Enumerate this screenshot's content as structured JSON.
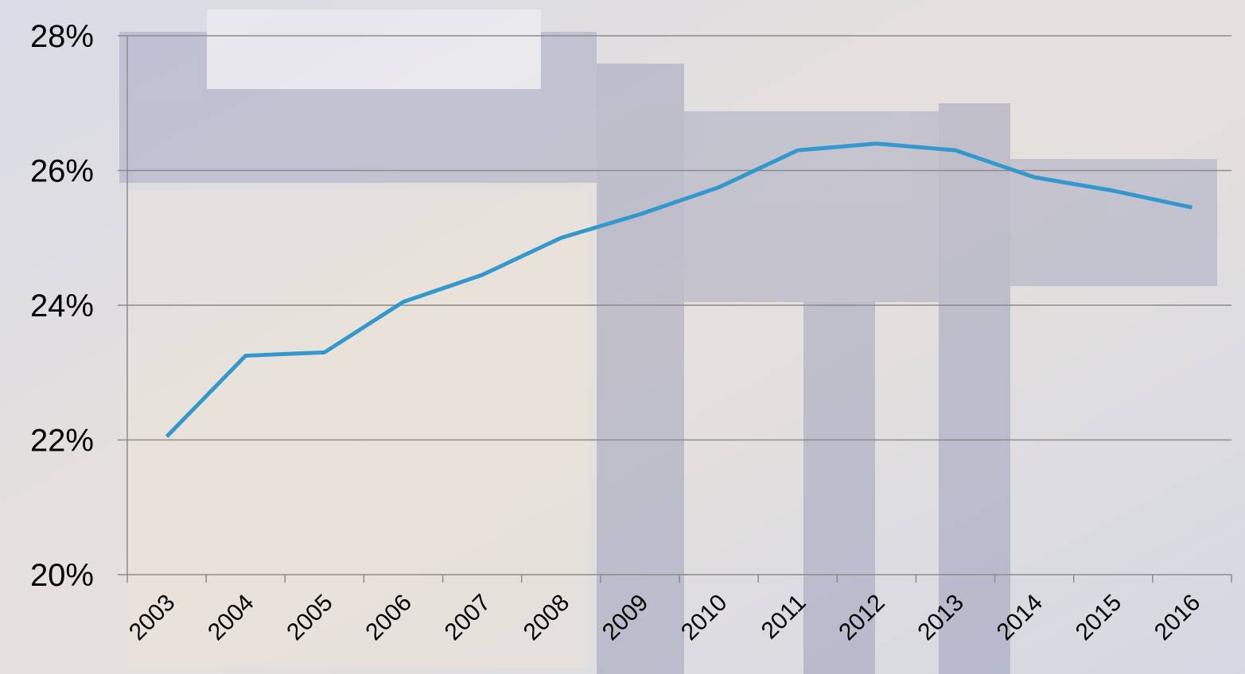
{
  "chart_data": {
    "type": "line",
    "categories": [
      "2003",
      "2004",
      "2005",
      "2006",
      "2007",
      "2008",
      "2009",
      "2010",
      "2011",
      "2012",
      "2013",
      "2014",
      "2015",
      "2016"
    ],
    "series": [
      {
        "color": "#3399cc",
        "values": [
          22.05,
          23.25,
          23.3,
          24.05,
          24.45,
          25.0,
          25.35,
          25.75,
          26.3,
          26.4,
          26.3,
          25.9,
          25.7,
          25.45
        ]
      }
    ],
    "ylim": [
      20,
      28
    ],
    "yticks": [
      {
        "value": 20,
        "label": "20%"
      },
      {
        "value": 22,
        "label": "22%"
      },
      {
        "value": 24,
        "label": "24%"
      },
      {
        "value": 26,
        "label": "26%"
      },
      {
        "value": 28,
        "label": "28%"
      }
    ],
    "grid": true
  }
}
